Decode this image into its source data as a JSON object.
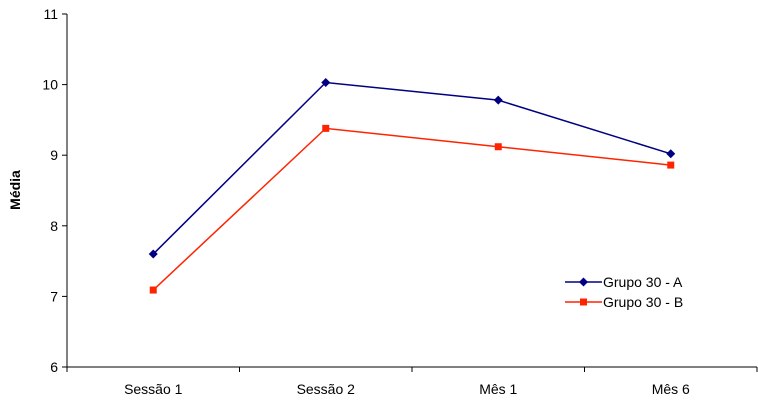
{
  "chart_data": {
    "type": "line",
    "title": "",
    "xlabel": "",
    "ylabel": "Média",
    "categories": [
      "Sessão 1",
      "Sessão 2",
      "Mês 1",
      "Mês 6"
    ],
    "ylim": [
      6,
      11
    ],
    "yticks": [
      "6",
      "7",
      "8",
      "9",
      "10",
      "11"
    ],
    "grid": false,
    "legend_position": "right",
    "series": [
      {
        "name": "Grupo 30 - A",
        "values": [
          7.6,
          10.03,
          9.78,
          9.02
        ],
        "color": "#000080",
        "marker": "diamond"
      },
      {
        "name": "Grupo 30 - B",
        "values": [
          7.09,
          9.38,
          9.12,
          8.86
        ],
        "color": "#ff2400",
        "marker": "square"
      }
    ]
  }
}
